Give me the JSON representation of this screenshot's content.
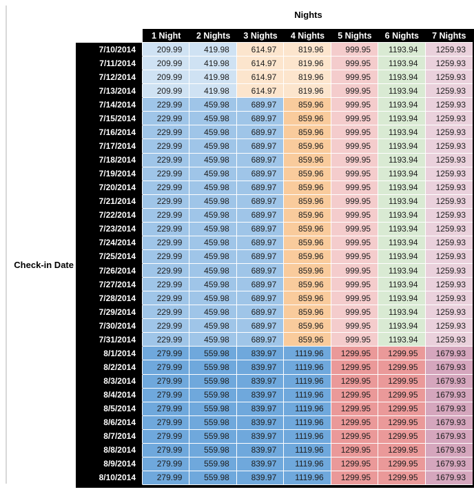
{
  "palette": {
    "blue1": "#6fa8dc",
    "blue2": "#9fc5e8",
    "blue3": "#cfe2f3",
    "orange2": "#f9cb9c",
    "orange3": "#fce5cd",
    "red2": "#ea9999",
    "red3": "#f4cccc",
    "green3": "#d9ead3",
    "magenta2": "#d5a6bd",
    "magenta3": "#ead1dc",
    "header_bg": "#000000",
    "header_text": "#ffffff"
  },
  "chart_data": {
    "type": "table",
    "title": "Nights",
    "row_axis_label": "Check-in Date",
    "columns": [
      "1 Night",
      "2 Nights",
      "3 Nights",
      "4 Nights",
      "5 Nights",
      "6 Nights",
      "7 Nights"
    ],
    "row_groups": [
      {
        "dates": [
          "7/10/2014",
          "7/11/2014",
          "7/12/2014",
          "7/13/2014"
        ],
        "values": [
          "209.99",
          "419.98",
          "614.97",
          "819.96",
          "999.95",
          "1193.94",
          "1259.93"
        ],
        "cell_colors": [
          "blue3",
          "blue3",
          "orange3",
          "orange3",
          "red3",
          "green3",
          "magenta3"
        ]
      },
      {
        "dates": [
          "7/14/2014",
          "7/15/2014",
          "7/16/2014",
          "7/17/2014",
          "7/18/2014",
          "7/19/2014",
          "7/20/2014",
          "7/21/2014",
          "7/22/2014",
          "7/23/2014",
          "7/24/2014",
          "7/25/2014",
          "7/26/2014",
          "7/27/2014",
          "7/28/2014",
          "7/29/2014",
          "7/30/2014",
          "7/31/2014"
        ],
        "values": [
          "229.99",
          "459.98",
          "689.97",
          "859.96",
          "999.95",
          "1193.94",
          "1259.93"
        ],
        "cell_colors": [
          "blue2",
          "blue2",
          "blue2",
          "orange2",
          "red3",
          "green3",
          "magenta3"
        ]
      },
      {
        "dates": [
          "8/1/2014",
          "8/2/2014",
          "8/3/2014",
          "8/4/2014",
          "8/5/2014",
          "8/6/2014",
          "8/7/2014",
          "8/8/2014",
          "8/9/2014",
          "8/10/2014"
        ],
        "values": [
          "279.99",
          "559.98",
          "839.97",
          "1119.96",
          "1299.95",
          "1299.95",
          "1679.93"
        ],
        "cell_colors": [
          "blue1",
          "blue1",
          "blue1",
          "blue1",
          "red2",
          "red2",
          "magenta2"
        ]
      }
    ]
  }
}
